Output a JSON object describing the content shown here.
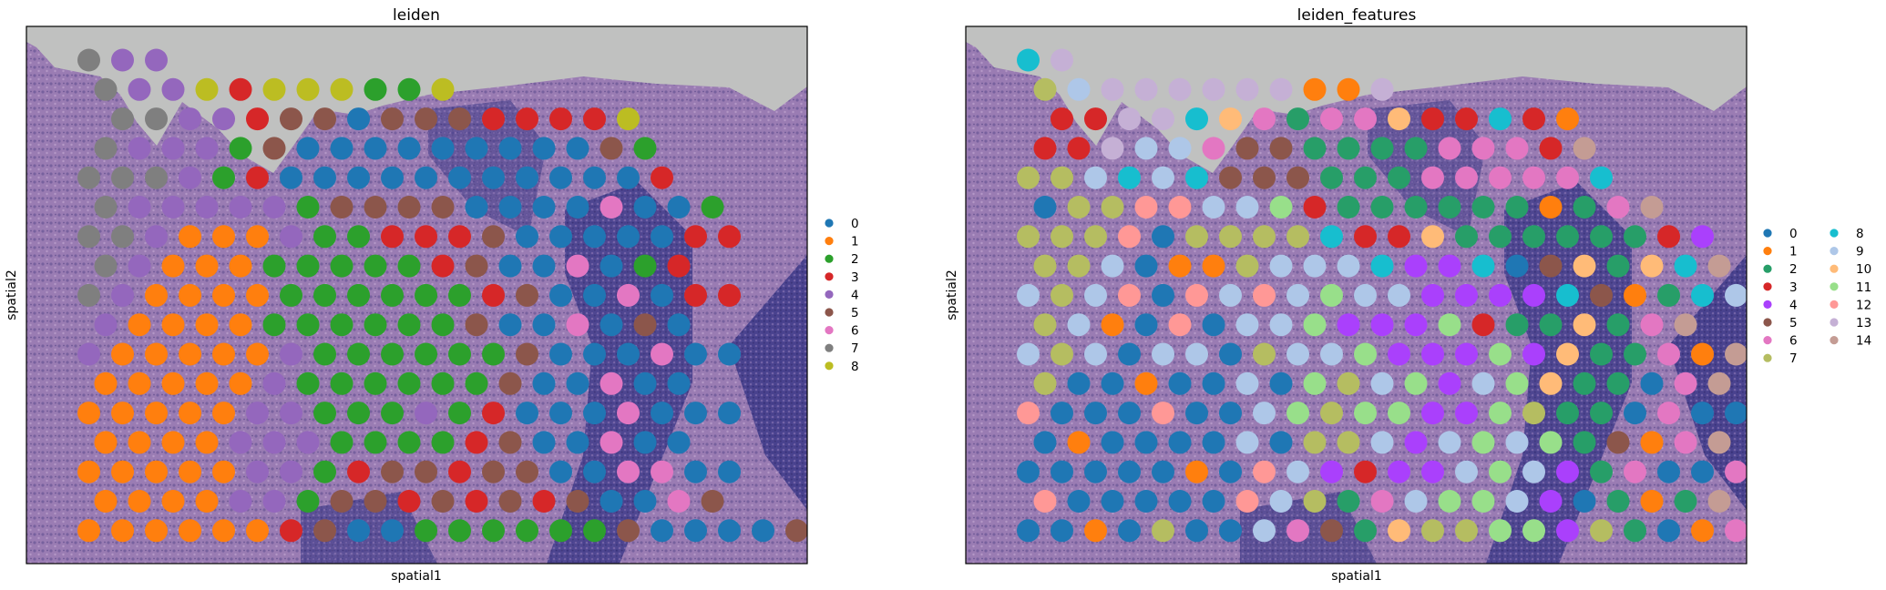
{
  "figure": {
    "panels": [
      {
        "title": "leiden",
        "xlabel": "spatial1",
        "ylabel": "spatial2",
        "legend": [
          "0",
          "1",
          "2",
          "3",
          "4",
          "5",
          "6",
          "7",
          "8"
        ],
        "palette": [
          "#1f77b4",
          "#ff7f0e",
          "#2ca02c",
          "#d62728",
          "#9467bd",
          "#8c564b",
          "#e377c2",
          "#7f7f7f",
          "#bcbd22"
        ]
      },
      {
        "title": "leiden_features",
        "xlabel": "spatial1",
        "ylabel": "spatial2",
        "legend": [
          "0",
          "1",
          "2",
          "3",
          "4",
          "5",
          "6",
          "7",
          "8",
          "9",
          "10",
          "11",
          "12",
          "13",
          "14"
        ],
        "palette": [
          "#1f77b4",
          "#ff7f0e",
          "#279e68",
          "#d62728",
          "#aa40fc",
          "#8c564b",
          "#e377c2",
          "#b5bd61",
          "#17becf",
          "#aec7e8",
          "#ffbb78",
          "#98df8a",
          "#ff9896",
          "#c5b0d5",
          "#c49c94"
        ]
      }
    ]
  },
  "chart_data": [
    {
      "type": "scatter",
      "title": "leiden",
      "xlabel": "spatial1",
      "ylabel": "spatial2",
      "legend_loc": "right margin",
      "grid": false,
      "categories": [
        "0",
        "1",
        "2",
        "3",
        "4",
        "5",
        "6",
        "7",
        "8"
      ],
      "columns": 22,
      "rows": [
        {
          "start": 1,
          "labels": [
            7,
            4,
            4
          ]
        },
        {
          "start": 2,
          "labels": [
            7,
            4,
            4,
            8,
            3,
            8,
            8,
            8,
            2,
            2,
            8
          ]
        },
        {
          "start": 2,
          "labels": [
            7,
            7,
            4,
            4,
            3,
            5,
            5,
            0,
            5,
            5,
            5,
            3,
            3,
            3,
            3,
            8
          ]
        },
        {
          "start": 2,
          "labels": [
            7,
            4,
            4,
            4,
            2,
            5,
            0,
            0,
            0,
            0,
            0,
            0,
            0,
            0,
            0,
            5,
            2
          ]
        },
        {
          "start": 1,
          "labels": [
            7,
            7,
            7,
            4,
            2,
            3,
            0,
            0,
            0,
            0,
            0,
            0,
            0,
            0,
            0,
            0,
            0,
            3
          ]
        },
        {
          "start": 2,
          "labels": [
            7,
            4,
            4,
            4,
            4,
            4,
            2,
            5,
            5,
            5,
            5,
            0,
            0,
            0,
            0,
            6,
            0,
            0,
            2
          ]
        },
        {
          "start": 1,
          "labels": [
            7,
            7,
            4,
            1,
            1,
            1,
            4,
            2,
            2,
            3,
            3,
            3,
            5,
            0,
            0,
            0,
            0,
            0,
            3,
            3
          ]
        },
        {
          "start": 2,
          "labels": [
            7,
            4,
            1,
            1,
            1,
            2,
            2,
            2,
            2,
            2,
            3,
            5,
            0,
            0,
            6,
            0,
            2,
            3
          ]
        },
        {
          "start": 1,
          "labels": [
            7,
            4,
            1,
            1,
            1,
            1,
            2,
            2,
            2,
            2,
            2,
            2,
            3,
            5,
            0,
            0,
            6,
            0,
            3,
            3
          ]
        },
        {
          "start": 2,
          "labels": [
            4,
            1,
            1,
            1,
            1,
            2,
            2,
            2,
            2,
            2,
            2,
            5,
            0,
            0,
            6,
            0,
            5,
            0
          ]
        },
        {
          "start": 1,
          "labels": [
            4,
            1,
            1,
            1,
            1,
            1,
            4,
            2,
            2,
            2,
            2,
            2,
            2,
            5,
            0,
            0,
            0,
            6,
            0,
            0
          ]
        },
        {
          "start": 2,
          "labels": [
            1,
            1,
            1,
            1,
            1,
            4,
            2,
            2,
            2,
            2,
            2,
            2,
            5,
            0,
            0,
            6,
            0,
            0
          ]
        },
        {
          "start": 1,
          "labels": [
            1,
            1,
            1,
            1,
            1,
            4,
            4,
            2,
            2,
            2,
            4,
            2,
            3,
            0,
            0,
            0,
            6,
            0,
            0,
            0
          ]
        },
        {
          "start": 2,
          "labels": [
            1,
            1,
            1,
            1,
            4,
            4,
            4,
            2,
            2,
            2,
            2,
            3,
            5,
            0,
            0,
            6,
            0,
            0
          ]
        },
        {
          "start": 1,
          "labels": [
            1,
            1,
            1,
            1,
            1,
            4,
            4,
            2,
            3,
            5,
            5,
            3,
            5,
            5,
            0,
            0,
            6,
            6,
            0,
            0
          ]
        },
        {
          "start": 2,
          "labels": [
            1,
            1,
            1,
            1,
            4,
            4,
            2,
            5,
            5,
            3,
            5,
            3,
            5,
            3,
            5,
            0,
            0,
            6,
            5
          ]
        },
        {
          "start": 1,
          "labels": [
            1,
            1,
            1,
            1,
            1,
            1,
            3,
            5,
            0,
            0,
            2,
            2,
            2,
            2,
            2,
            2,
            5,
            0,
            0,
            0,
            0,
            5
          ]
        }
      ]
    },
    {
      "type": "scatter",
      "title": "leiden_features",
      "xlabel": "spatial1",
      "ylabel": "spatial2",
      "legend_loc": "right margin",
      "grid": false,
      "categories": [
        "0",
        "1",
        "2",
        "3",
        "4",
        "5",
        "6",
        "7",
        "8",
        "9",
        "10",
        "11",
        "12",
        "13",
        "14"
      ],
      "columns": 22,
      "rows": [
        {
          "start": 1,
          "labels": [
            8,
            13
          ]
        },
        {
          "start": 2,
          "labels": [
            7,
            9,
            13,
            13,
            13,
            13,
            13,
            13,
            1,
            1,
            13
          ]
        },
        {
          "start": 2,
          "labels": [
            3,
            3,
            13,
            13,
            8,
            10,
            6,
            2,
            6,
            6,
            10,
            3,
            3,
            8,
            3,
            1
          ]
        },
        {
          "start": 2,
          "labels": [
            3,
            3,
            13,
            9,
            9,
            6,
            5,
            5,
            2,
            2,
            2,
            2,
            6,
            6,
            6,
            3,
            14
          ]
        },
        {
          "start": 1,
          "labels": [
            7,
            7,
            9,
            8,
            9,
            8,
            5,
            5,
            5,
            2,
            2,
            2,
            6,
            6,
            6,
            6,
            6,
            8
          ]
        },
        {
          "start": 2,
          "labels": [
            0,
            7,
            7,
            12,
            12,
            9,
            9,
            11,
            3,
            2,
            2,
            2,
            2,
            2,
            2,
            1,
            2,
            6,
            14
          ]
        },
        {
          "start": 1,
          "labels": [
            7,
            7,
            7,
            12,
            0,
            7,
            7,
            7,
            7,
            8,
            3,
            3,
            10,
            2,
            2,
            2,
            2,
            2,
            2,
            3,
            4
          ]
        },
        {
          "start": 2,
          "labels": [
            7,
            7,
            9,
            0,
            1,
            1,
            7,
            9,
            9,
            9,
            8,
            4,
            4,
            8,
            0,
            5,
            10,
            2,
            10,
            8,
            14
          ]
        },
        {
          "start": 1,
          "labels": [
            9,
            7,
            9,
            12,
            0,
            12,
            9,
            12,
            9,
            11,
            9,
            9,
            4,
            4,
            4,
            4,
            8,
            5,
            1,
            2,
            8,
            9
          ]
        },
        {
          "start": 2,
          "labels": [
            7,
            9,
            1,
            0,
            12,
            0,
            9,
            9,
            11,
            4,
            4,
            4,
            11,
            3,
            2,
            2,
            10,
            2,
            6,
            14
          ]
        },
        {
          "start": 1,
          "labels": [
            9,
            7,
            9,
            0,
            9,
            9,
            0,
            7,
            9,
            9,
            11,
            4,
            4,
            4,
            11,
            4,
            10,
            2,
            2,
            6,
            1,
            14
          ]
        },
        {
          "start": 2,
          "labels": [
            7,
            0,
            0,
            1,
            0,
            0,
            9,
            0,
            11,
            7,
            9,
            11,
            4,
            9,
            11,
            10,
            2,
            2,
            0,
            6,
            14
          ]
        },
        {
          "start": 1,
          "labels": [
            12,
            0,
            0,
            0,
            12,
            0,
            0,
            9,
            11,
            7,
            11,
            11,
            4,
            4,
            11,
            7,
            2,
            2,
            0,
            6,
            0,
            0
          ]
        },
        {
          "start": 2,
          "labels": [
            0,
            1,
            0,
            0,
            0,
            0,
            9,
            0,
            7,
            7,
            9,
            4,
            9,
            11,
            9,
            11,
            2,
            5,
            1,
            6,
            14
          ]
        },
        {
          "start": 1,
          "labels": [
            0,
            0,
            0,
            0,
            0,
            1,
            0,
            12,
            9,
            4,
            3,
            4,
            4,
            9,
            11,
            9,
            4,
            2,
            6,
            0,
            0,
            6
          ]
        },
        {
          "start": 2,
          "labels": [
            12,
            0,
            0,
            0,
            0,
            0,
            12,
            9,
            7,
            2,
            6,
            9,
            11,
            11,
            9,
            4,
            0,
            2,
            1,
            2,
            14
          ]
        },
        {
          "start": 1,
          "labels": [
            0,
            0,
            1,
            0,
            7,
            0,
            0,
            9,
            6,
            5,
            2,
            10,
            7,
            7,
            11,
            11,
            4,
            7,
            2,
            0,
            1,
            6
          ]
        }
      ]
    }
  ]
}
